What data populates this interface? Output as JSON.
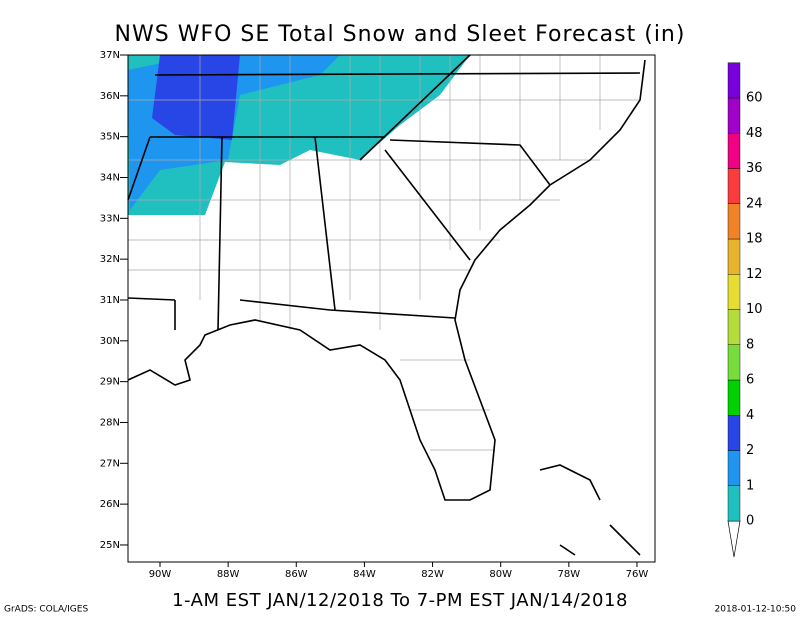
{
  "title": "NWS WFO SE Total Snow and Sleet Forecast (in)",
  "valid_period": "1-AM EST JAN/12/2018 To 7-PM EST JAN/14/2018",
  "footer_left": "GrADS: COLA/IGES",
  "footer_right": "2018-01-12-10:50",
  "latitude_labels": [
    "37N",
    "36N",
    "35N",
    "34N",
    "33N",
    "32N",
    "31N",
    "30N",
    "29N",
    "28N",
    "27N",
    "26N",
    "25N"
  ],
  "longitude_labels": [
    "90W",
    "88W",
    "86W",
    "84W",
    "82W",
    "80W",
    "78W",
    "76W"
  ],
  "legend": {
    "levels": [
      0,
      1,
      2,
      4,
      6,
      8,
      10,
      12,
      18,
      24,
      36,
      48,
      60
    ],
    "colors": [
      "#20c0c0",
      "#1e96f0",
      "#2846e6",
      "#00d200",
      "#78dc3c",
      "#b4dc3c",
      "#e6dc32",
      "#e6b42d",
      "#f08228",
      "#fa3c3c",
      "#f00082",
      "#a000c8",
      "#7800dc"
    ]
  }
}
